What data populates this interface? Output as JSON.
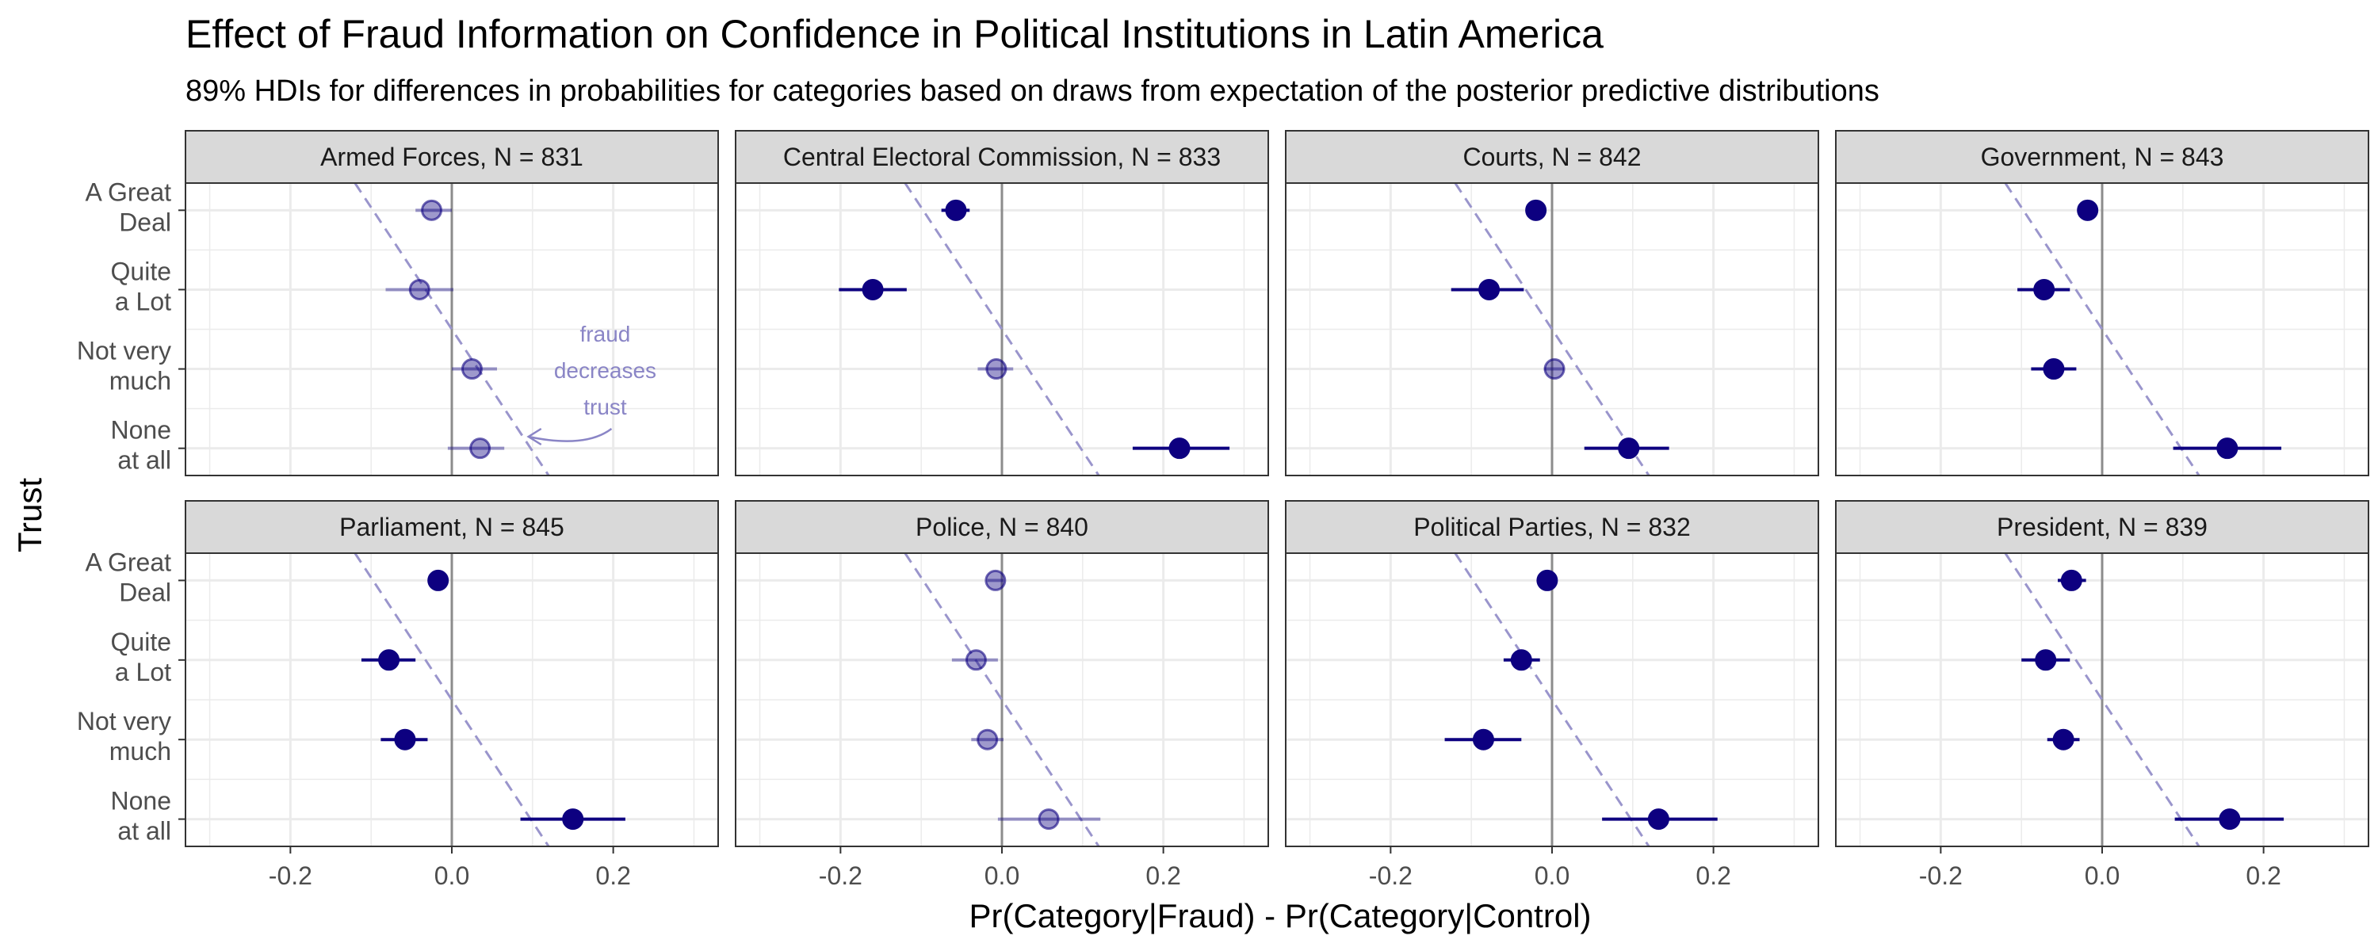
{
  "colors": {
    "point": "#0d0080",
    "ref_line": "#9a95cc",
    "zero_line": "#8c8c8c",
    "strip_fill": "#d9d9d9",
    "grid": "#ebebeb",
    "annotation": "#8a85c6"
  },
  "chart_data": {
    "type": "scatter",
    "title": "Effect of Fraud Information on Confidence in Political Institutions in Latin America",
    "subtitle": "89% HDIs for differences in probabilities for categories based on draws from expectation of the posterior predictive distributions",
    "xlabel": "Pr(Category|Fraud) - Pr(Category|Control)",
    "ylabel": "Trust",
    "xlim": [
      -0.33,
      0.33
    ],
    "x_ticks": [
      "-0.2",
      "0.0",
      "0.2"
    ],
    "x_tick_values": [
      -0.2,
      0.0,
      0.2
    ],
    "grid": true,
    "legend": "none",
    "categories": [
      [
        "A Great",
        "Deal"
      ],
      [
        "Quite",
        "a Lot"
      ],
      [
        "Not very",
        "much"
      ],
      [
        "None",
        "at all"
      ]
    ],
    "reference_line": {
      "x_at_top": -0.12,
      "x_at_bottom": 0.12,
      "style": "dashed"
    },
    "annotation": {
      "panel": 0,
      "lines": [
        "fraud",
        "decreases",
        "trust"
      ]
    },
    "panels": [
      {
        "label": "Armed Forces, N = 831",
        "points": [
          {
            "estimate": -0.025,
            "lower": -0.045,
            "upper": 0.0,
            "credible": false
          },
          {
            "estimate": -0.04,
            "lower": -0.082,
            "upper": 0.002,
            "credible": false
          },
          {
            "estimate": 0.025,
            "lower": 0.0,
            "upper": 0.056,
            "credible": false
          },
          {
            "estimate": 0.035,
            "lower": -0.005,
            "upper": 0.065,
            "credible": false
          }
        ]
      },
      {
        "label": "Central Electoral Commission, N = 833",
        "points": [
          {
            "estimate": -0.057,
            "lower": -0.075,
            "upper": -0.04,
            "credible": true
          },
          {
            "estimate": -0.16,
            "lower": -0.202,
            "upper": -0.118,
            "credible": true
          },
          {
            "estimate": -0.007,
            "lower": -0.03,
            "upper": 0.014,
            "credible": false
          },
          {
            "estimate": 0.22,
            "lower": 0.162,
            "upper": 0.282,
            "credible": true
          }
        ]
      },
      {
        "label": "Courts, N = 842",
        "points": [
          {
            "estimate": -0.02,
            "lower": -0.03,
            "upper": -0.01,
            "credible": true
          },
          {
            "estimate": -0.078,
            "lower": -0.125,
            "upper": -0.035,
            "credible": true
          },
          {
            "estimate": 0.003,
            "lower": -0.01,
            "upper": 0.015,
            "credible": false
          },
          {
            "estimate": 0.095,
            "lower": 0.04,
            "upper": 0.145,
            "credible": true
          }
        ]
      },
      {
        "label": "Government, N = 843",
        "points": [
          {
            "estimate": -0.018,
            "lower": -0.026,
            "upper": -0.01,
            "credible": true
          },
          {
            "estimate": -0.072,
            "lower": -0.105,
            "upper": -0.04,
            "credible": true
          },
          {
            "estimate": -0.06,
            "lower": -0.088,
            "upper": -0.032,
            "credible": true
          },
          {
            "estimate": 0.155,
            "lower": 0.088,
            "upper": 0.222,
            "credible": true
          }
        ]
      },
      {
        "label": "Parliament, N = 845",
        "points": [
          {
            "estimate": -0.017,
            "lower": -0.026,
            "upper": -0.008,
            "credible": true
          },
          {
            "estimate": -0.078,
            "lower": -0.112,
            "upper": -0.045,
            "credible": true
          },
          {
            "estimate": -0.058,
            "lower": -0.088,
            "upper": -0.03,
            "credible": true
          },
          {
            "estimate": 0.15,
            "lower": 0.085,
            "upper": 0.215,
            "credible": true
          }
        ]
      },
      {
        "label": "Police, N = 840",
        "points": [
          {
            "estimate": -0.008,
            "lower": -0.018,
            "upper": 0.002,
            "credible": false
          },
          {
            "estimate": -0.032,
            "lower": -0.062,
            "upper": -0.005,
            "credible": false
          },
          {
            "estimate": -0.018,
            "lower": -0.038,
            "upper": 0.002,
            "credible": false
          },
          {
            "estimate": 0.058,
            "lower": -0.005,
            "upper": 0.122,
            "credible": false
          }
        ]
      },
      {
        "label": "Political Parties, N = 832",
        "points": [
          {
            "estimate": -0.006,
            "lower": -0.012,
            "upper": 0.0,
            "credible": true
          },
          {
            "estimate": -0.038,
            "lower": -0.06,
            "upper": -0.015,
            "credible": true
          },
          {
            "estimate": -0.085,
            "lower": -0.133,
            "upper": -0.038,
            "credible": true
          },
          {
            "estimate": 0.132,
            "lower": 0.062,
            "upper": 0.205,
            "credible": true
          }
        ]
      },
      {
        "label": "President, N = 839",
        "points": [
          {
            "estimate": -0.038,
            "lower": -0.055,
            "upper": -0.02,
            "credible": true
          },
          {
            "estimate": -0.07,
            "lower": -0.1,
            "upper": -0.04,
            "credible": true
          },
          {
            "estimate": -0.048,
            "lower": -0.068,
            "upper": -0.028,
            "credible": true
          },
          {
            "estimate": 0.158,
            "lower": 0.09,
            "upper": 0.225,
            "credible": true
          }
        ]
      }
    ]
  }
}
